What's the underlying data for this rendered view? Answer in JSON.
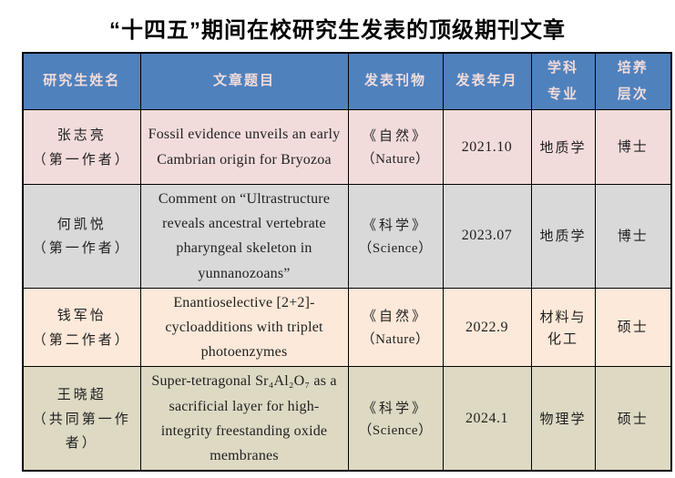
{
  "title": "“十四五”期间在校研究生发表的顶级期刊文章",
  "colors": {
    "header_bg": "#4f81bd",
    "header_text": "#f2dcdb",
    "border": "#000000",
    "title_text": "#000000",
    "row_pink": "#f2dcdb",
    "row_gray": "#d9d9d9",
    "row_cream": "#fde9d9",
    "row_tan": "#ddd9c3"
  },
  "table": {
    "headers": [
      {
        "l1": "研究生姓名"
      },
      {
        "l1": "文章题目"
      },
      {
        "l1": "发表刊物"
      },
      {
        "l1": "发表年月"
      },
      {
        "l1": "学科",
        "l2": "专业"
      },
      {
        "l1": "培养",
        "l2": "层次"
      }
    ],
    "rows": [
      {
        "name": "张志亮",
        "role": "（第一作者）",
        "article": "Fossil evidence unveils an early Cambrian origin for Bryozoa",
        "journal_cn": "《自然》",
        "journal_en": "（Nature）",
        "date": "2021.10",
        "discipline": "地质学",
        "level": "博士",
        "bg": "#f2dcdb"
      },
      {
        "name": "何凯悦",
        "role": "（第一作者）",
        "article": "Comment on “Ultrastructure reveals ancestral vertebrate pharyngeal skeleton in yunnanozoans”",
        "journal_cn": "《科学》",
        "journal_en": "（Science）",
        "date": "2023.07",
        "discipline": "地质学",
        "level": "博士",
        "bg": "#d9d9d9"
      },
      {
        "name": "钱军怡",
        "role": "（第二作者）",
        "article": "Enantioselective [2+2]-cycloadditions with triplet photoenzymes",
        "journal_cn": "《自然》",
        "journal_en": "（Nature）",
        "date": "2022.9",
        "discipline": "材料与化工",
        "level": "硕士",
        "bg": "#fde9d9"
      },
      {
        "name": "王晓超",
        "role": "（共同第一作者）",
        "article": "Super-tetragonal Sr₄Al₂O₇ as a sacrificial layer for high-integrity freestanding oxide membranes",
        "journal_cn": "《科学》",
        "journal_en": "（Science）",
        "date": "2024.1",
        "discipline": "物理学",
        "level": "硕士",
        "bg": "#ddd9c3"
      }
    ]
  }
}
